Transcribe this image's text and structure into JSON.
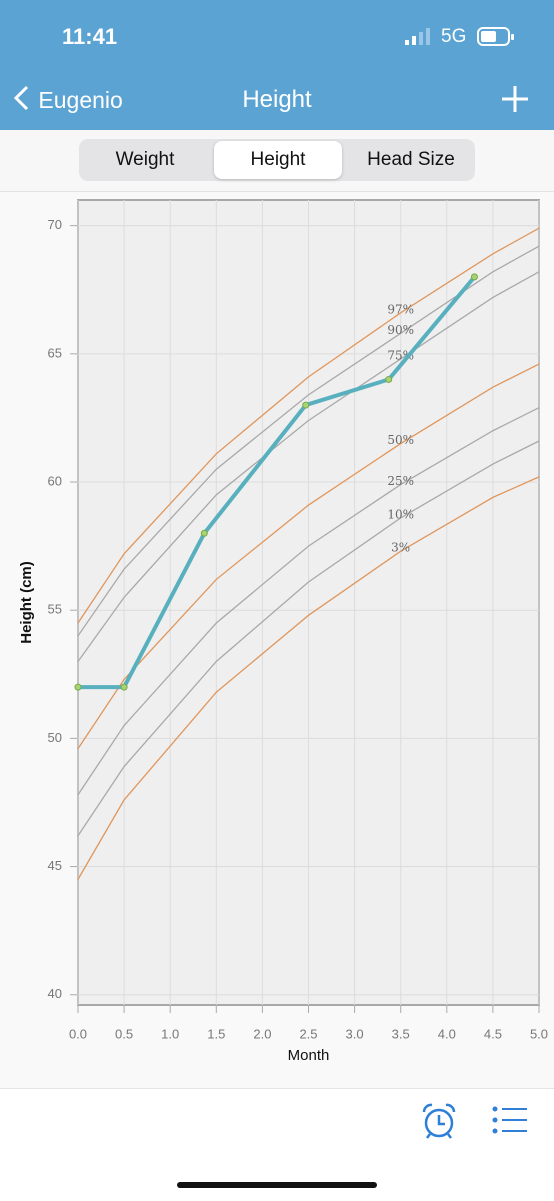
{
  "status_bar": {
    "time": "11:41",
    "network": "5G"
  },
  "nav": {
    "back": "Eugenio",
    "title": "Height"
  },
  "tabs": [
    "Weight",
    "Height",
    "Head Size"
  ],
  "selected_tab": 1,
  "chart_data": {
    "type": "line",
    "x_label": "Month",
    "y_label": "Height (cm)",
    "xlim": [
      0,
      5
    ],
    "ylim": [
      39.6,
      71
    ],
    "xticks": [
      {
        "value": 0,
        "label": "0.0"
      },
      0.5,
      {
        "value": 1,
        "label": "1.0"
      },
      1.5,
      {
        "value": 2,
        "label": "2.0"
      },
      2.5,
      {
        "value": 3,
        "label": "3.0"
      },
      3.5,
      {
        "value": 4,
        "label": "4.0"
      },
      4.5,
      {
        "value": 5,
        "label": "5.0"
      }
    ],
    "yticks": [
      40,
      45,
      50,
      55,
      60,
      65,
      70
    ],
    "grid": true,
    "x": [
      0,
      0.5,
      1.5,
      2.5,
      3.5,
      4.5,
      5
    ],
    "series": [
      {
        "name": "97%",
        "color": "#e0965c",
        "values": [
          54.5,
          57.2,
          61.1,
          64.1,
          66.6,
          68.9,
          69.9
        ]
      },
      {
        "name": "90%",
        "color": "#a9a9a9",
        "values": [
          54.0,
          56.6,
          60.5,
          63.4,
          65.8,
          68.2,
          69.2
        ]
      },
      {
        "name": "75%",
        "color": "#a9a9a9",
        "values": [
          53.0,
          55.5,
          59.5,
          62.4,
          64.8,
          67.2,
          68.2
        ]
      },
      {
        "name": "50%",
        "color": "#e0965c",
        "values": [
          49.6,
          52.3,
          56.2,
          59.1,
          61.5,
          63.7,
          64.6
        ]
      },
      {
        "name": "25%",
        "color": "#a9a9a9",
        "values": [
          47.8,
          50.5,
          54.5,
          57.5,
          59.9,
          62.0,
          62.9
        ]
      },
      {
        "name": "10%",
        "color": "#a9a9a9",
        "values": [
          46.2,
          48.9,
          53.0,
          56.1,
          58.6,
          60.7,
          61.6
        ]
      },
      {
        "name": "3%",
        "color": "#e0965c",
        "values": [
          44.5,
          47.6,
          51.8,
          54.8,
          57.3,
          59.4,
          60.2
        ]
      }
    ],
    "points": {
      "color": "#58b0bf",
      "x": [
        0,
        0.5,
        1.37,
        2.47,
        3.37,
        4.3
      ],
      "values": [
        52,
        52,
        58,
        63,
        64,
        68
      ]
    }
  }
}
